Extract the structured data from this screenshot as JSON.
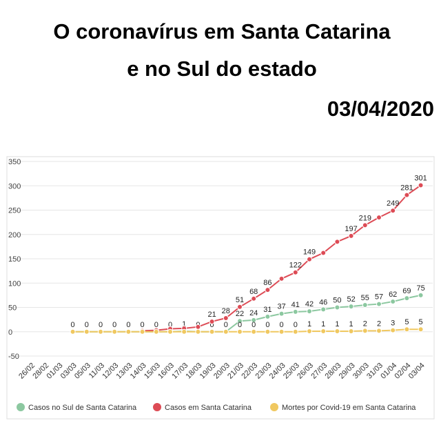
{
  "title_lines": [
    "O coronavírus em Santa Catarina",
    "e no Sul do estado"
  ],
  "date": "03/04/2020",
  "chart_data": {
    "type": "line",
    "categories": [
      "26/02",
      "28/02",
      "01/03",
      "03/03",
      "05/03",
      "11/03",
      "12/03",
      "13/03",
      "14/03",
      "15/03",
      "16/03",
      "17/03",
      "18/03",
      "19/03",
      "20/03",
      "21/03",
      "22/03",
      "23/03",
      "24/03",
      "25/03",
      "26/03",
      "27/03",
      "28/03",
      "29/03",
      "30/03",
      "31/03",
      "01/04",
      "02/04",
      "03/04"
    ],
    "series": [
      {
        "name": "Casos no Sul de Santa Catarina",
        "color": "#8cc8a0",
        "values": [
          null,
          null,
          null,
          0,
          0,
          0,
          0,
          0,
          0,
          0,
          0,
          1,
          0,
          0,
          0,
          22,
          24,
          31,
          37,
          41,
          42,
          46,
          50,
          52,
          55,
          57,
          62,
          69,
          75
        ],
        "value_labels": [
          null,
          null,
          null,
          "0",
          "0",
          "0",
          "0",
          "0",
          "0",
          "0",
          "0",
          "1",
          "0",
          "0",
          "0",
          "22",
          "24",
          "31",
          "37",
          "41",
          "42",
          "46",
          "50",
          "52",
          "55",
          "57",
          "62",
          "69",
          "75"
        ]
      },
      {
        "name": "Casos em Santa Catarina",
        "color": "#dd4b55",
        "values": [
          null,
          null,
          null,
          null,
          null,
          null,
          null,
          null,
          2,
          3,
          6,
          7,
          10,
          21,
          28,
          51,
          68,
          86,
          109,
          122,
          149,
          162,
          185,
          197,
          219,
          235,
          249,
          281,
          301
        ],
        "value_labels": [
          null,
          null,
          null,
          null,
          null,
          null,
          null,
          null,
          null,
          null,
          null,
          null,
          null,
          "21",
          "28",
          "51",
          "68",
          "86",
          null,
          "122",
          "149",
          null,
          null,
          "197",
          "219",
          null,
          "249",
          "281",
          "301"
        ]
      },
      {
        "name": "Mortes por Covid-19 em Santa Catarina",
        "color": "#f0c860",
        "values": [
          null,
          null,
          null,
          0,
          0,
          0,
          0,
          0,
          0,
          0,
          0,
          0,
          0,
          0,
          0,
          0,
          0,
          0,
          0,
          0,
          1,
          1,
          1,
          1,
          2,
          2,
          3,
          5,
          5
        ],
        "value_labels": [
          null,
          null,
          null,
          null,
          null,
          null,
          null,
          null,
          null,
          null,
          null,
          null,
          null,
          null,
          null,
          "0",
          "0",
          "0",
          "0",
          "0",
          "1",
          "1",
          "1",
          "1",
          "2",
          "2",
          "3",
          "5",
          "5"
        ]
      }
    ],
    "ylim": [
      -50,
      350
    ],
    "yticks": [
      -50,
      0,
      50,
      100,
      150,
      200,
      250,
      300,
      350
    ],
    "grid": true,
    "legend": "bottom"
  }
}
